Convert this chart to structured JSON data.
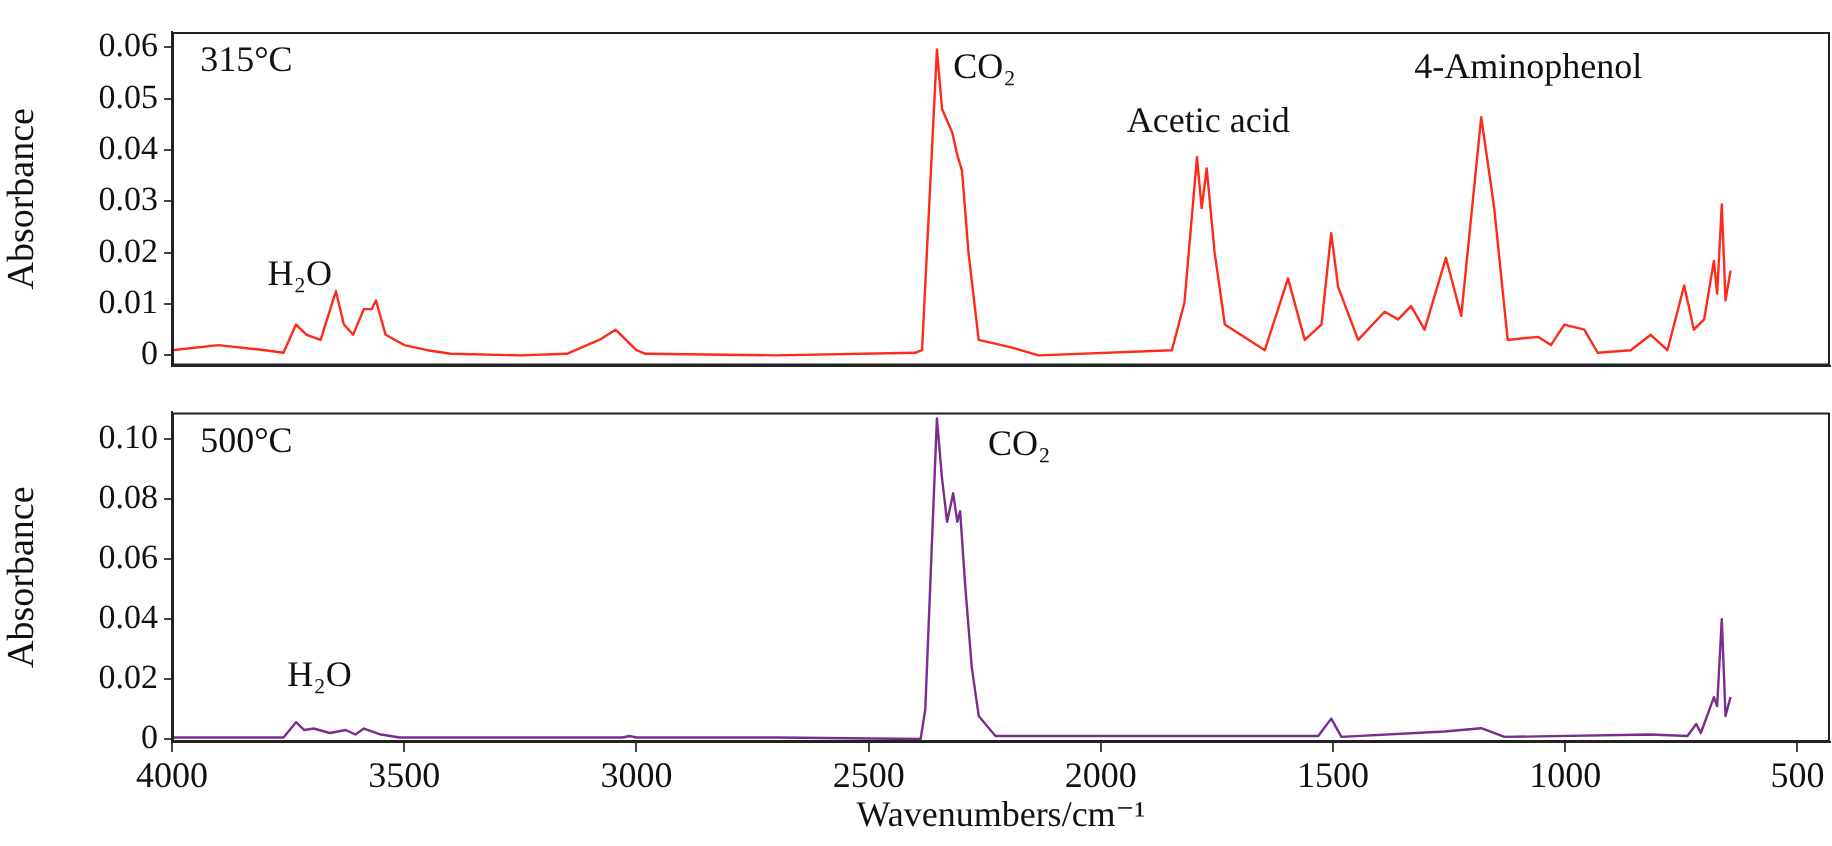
{
  "chart_data": [
    {
      "type": "line",
      "ylabel": "Absorbance",
      "xlim": [
        4000,
        430
      ],
      "xticks": [
        4000,
        3500,
        3000,
        2500,
        2000,
        1500,
        1000,
        500
      ],
      "ylim": [
        -0.002,
        0.063
      ],
      "yticks": [
        0,
        0.01,
        0.02,
        0.03,
        0.04,
        0.05,
        0.06
      ],
      "tick_labels": "y",
      "grid": false,
      "legend": false,
      "marker": "none",
      "line_style": "solid",
      "annotations": [
        "315°C",
        "H₂O",
        "CO₂",
        "Acetic acid",
        "4-Aminophenol"
      ],
      "series": [
        {
          "color": "#ff2a1a",
          "x": [
            4000,
            3900,
            3800,
            3760,
            3733,
            3710,
            3680,
            3647,
            3630,
            3610,
            3587,
            3570,
            3561,
            3540,
            3500,
            3450,
            3400,
            3250,
            3150,
            3080,
            3045,
            3000,
            2980,
            2700,
            2400,
            2385,
            2353,
            2342,
            2320,
            2309,
            2299,
            2285,
            2263,
            2191,
            2134,
            1847,
            1820,
            1793,
            1783,
            1772,
            1755,
            1733,
            1647,
            1597,
            1561,
            1525,
            1504,
            1489,
            1446,
            1389,
            1360,
            1332,
            1303,
            1257,
            1224,
            1181,
            1153,
            1124,
            1059,
            1031,
            1002,
            959,
            930,
            859,
            816,
            780,
            744,
            723,
            701,
            680,
            673,
            663,
            655,
            644
          ],
          "values": [
            0.001,
            0.002,
            0.001,
            0.0005,
            0.006,
            0.004,
            0.003,
            0.0125,
            0.006,
            0.004,
            0.009,
            0.009,
            0.0107,
            0.004,
            0.002,
            0.001,
            0.0003,
            0,
            0.0003,
            0.003,
            0.005,
            0.001,
            0.0003,
            0,
            0.0005,
            0.001,
            0.0596,
            0.048,
            0.0434,
            0.039,
            0.036,
            0.02,
            0.003,
            0.0015,
            0,
            0.001,
            0.0103,
            0.0386,
            0.0287,
            0.0364,
            0.02,
            0.006,
            0.001,
            0.015,
            0.003,
            0.006,
            0.0238,
            0.0133,
            0.003,
            0.0085,
            0.007,
            0.0096,
            0.005,
            0.019,
            0.0077,
            0.0464,
            0.0287,
            0.003,
            0.0036,
            0.002,
            0.006,
            0.005,
            0.0005,
            0.001,
            0.004,
            0.001,
            0.0136,
            0.005,
            0.007,
            0.0184,
            0.012,
            0.0294,
            0.0107,
            0.0165
          ]
        }
      ]
    },
    {
      "type": "line",
      "xlabel": "Wavenumbers/cm⁻¹",
      "ylabel": "Absorbance",
      "xlim": [
        4000,
        430
      ],
      "xticks": [
        4000,
        3500,
        3000,
        2500,
        2000,
        1500,
        1000,
        500
      ],
      "ylim": [
        -0.001,
        0.109
      ],
      "yticks": [
        0,
        0.02,
        0.04,
        0.06,
        0.08,
        {
          "value": 0.1,
          "label": "0.10"
        }
      ],
      "grid": false,
      "legend": false,
      "marker": "none",
      "line_style": "solid",
      "annotations": [
        "500°C",
        "H₂O",
        "CO₂"
      ],
      "series": [
        {
          "color": "#7b2d8e",
          "x": [
            4000,
            3800,
            3760,
            3733,
            3715,
            3695,
            3660,
            3626,
            3605,
            3587,
            3550,
            3510,
            3400,
            3100,
            3030,
            3015,
            3000,
            2700,
            2388,
            2378,
            2353,
            2342,
            2331,
            2318,
            2309,
            2303,
            2292,
            2278,
            2263,
            2227,
            1905,
            1532,
            1504,
            1482,
            1260,
            1181,
            1131,
            816,
            737,
            718,
            708,
            680,
            673,
            663,
            655,
            644
          ],
          "values": [
            0.0005,
            0.0005,
            0.0005,
            0.0056,
            0.003,
            0.0035,
            0.002,
            0.003,
            0.0015,
            0.0035,
            0.0015,
            0.0005,
            0.0005,
            0.0005,
            0.0005,
            0.001,
            0.0005,
            0.0005,
            0,
            0.01,
            0.107,
            0.087,
            0.0725,
            0.082,
            0.0725,
            0.076,
            0.051,
            0.024,
            0.0077,
            0.001,
            0.001,
            0.001,
            0.0068,
            0.0007,
            0.0025,
            0.0036,
            0.0007,
            0.0015,
            0.001,
            0.005,
            0.002,
            0.014,
            0.011,
            0.04,
            0.0077,
            0.014
          ]
        }
      ]
    }
  ]
}
